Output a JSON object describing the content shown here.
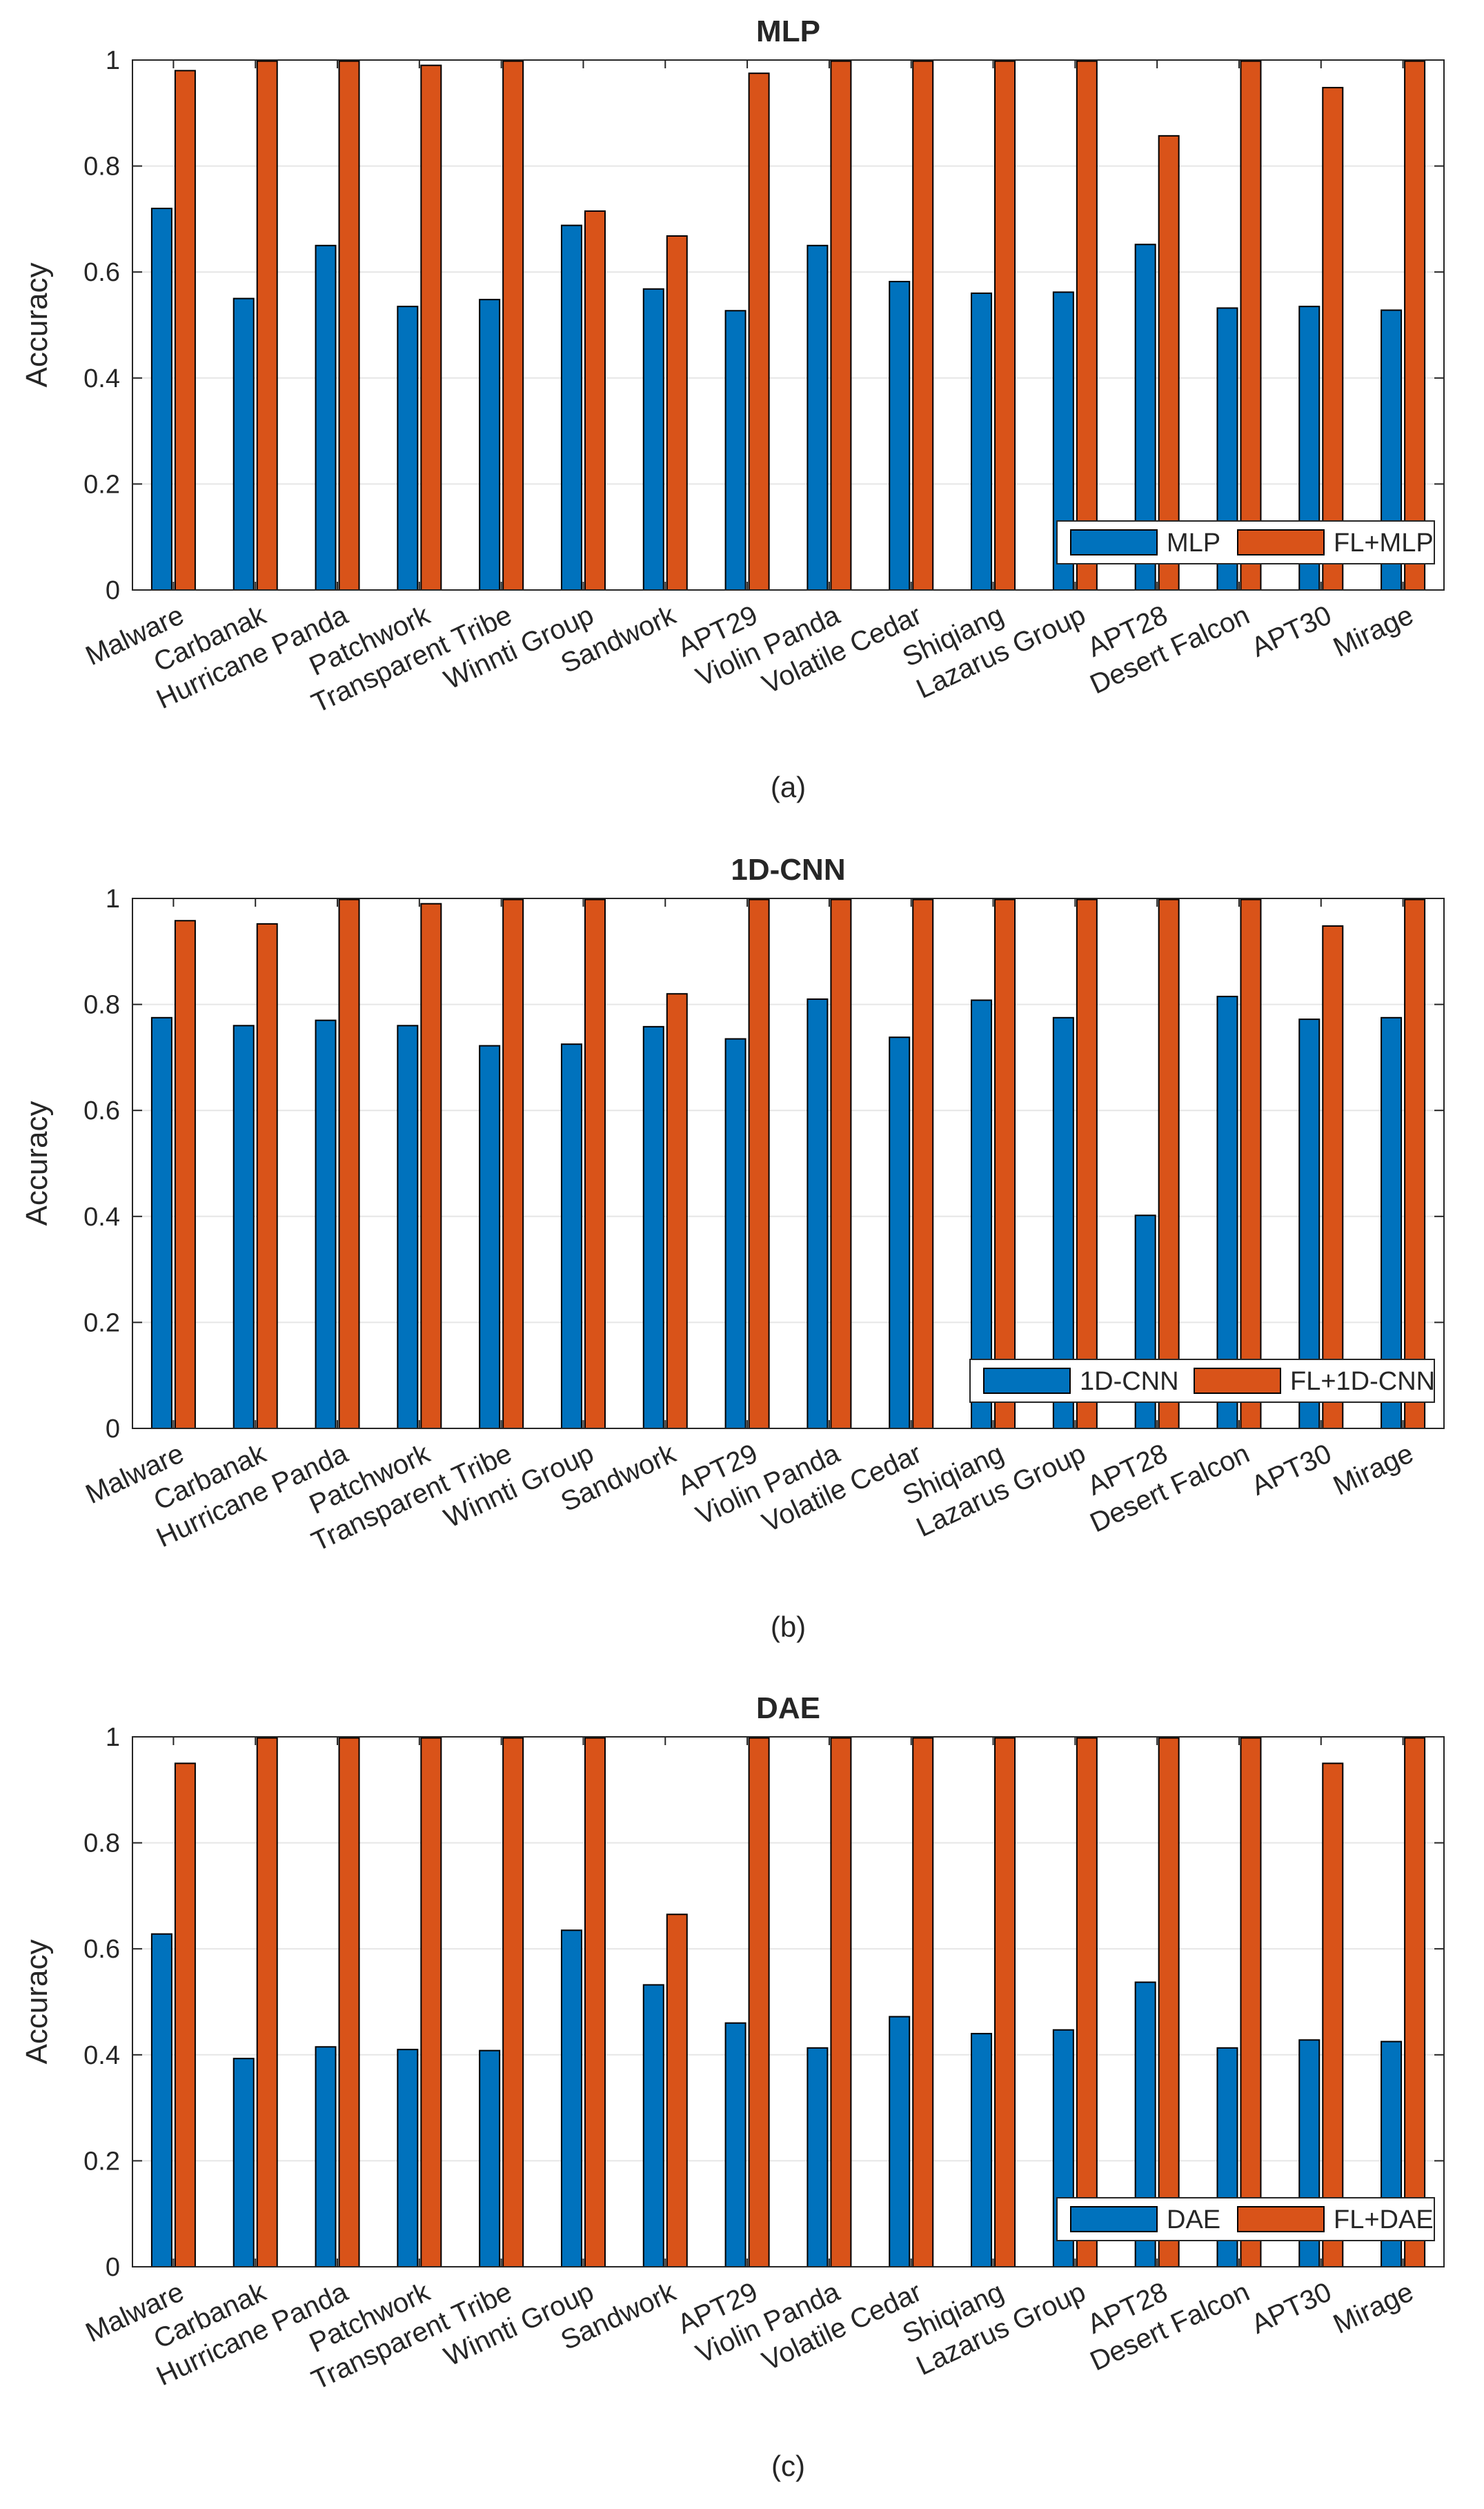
{
  "colors": {
    "base": "#0072BD",
    "fl": "#D95319",
    "grid": "#e6e6e6",
    "axis": "#262626"
  },
  "chart_data": [
    {
      "type": "bar",
      "title": "MLP",
      "caption": "(a)",
      "xlabel": "",
      "ylabel": "Accuracy",
      "ylim": [
        0,
        1
      ],
      "yticks": [
        "0",
        "0.2",
        "0.4",
        "0.6",
        "0.8",
        "1"
      ],
      "grid": true,
      "legend_position": "bottom-right",
      "categories": [
        "Malware",
        "Carbanak",
        "Hurricane Panda",
        "Patchwork",
        "Transparent Tribe",
        "Winnti Group",
        "Sandwork",
        "APT29",
        "Violin Panda",
        "Volatile Cedar",
        "Shiqiang",
        "Lazarus Group",
        "APT28",
        "Desert Falcon",
        "APT30",
        "Mirage"
      ],
      "series": [
        {
          "name": "MLP",
          "values": [
            0.72,
            0.55,
            0.65,
            0.535,
            0.548,
            0.688,
            0.568,
            0.527,
            0.65,
            0.582,
            0.56,
            0.562,
            0.652,
            0.532,
            0.535,
            0.528
          ]
        },
        {
          "name": "FL+MLP",
          "values": [
            0.98,
            0.998,
            0.998,
            0.99,
            0.998,
            0.715,
            0.668,
            0.975,
            0.998,
            0.998,
            0.998,
            0.998,
            0.857,
            0.998,
            0.948,
            0.998
          ]
        }
      ]
    },
    {
      "type": "bar",
      "title": "1D-CNN",
      "caption": "(b)",
      "xlabel": "",
      "ylabel": "Accuracy",
      "ylim": [
        0,
        1
      ],
      "yticks": [
        "0",
        "0.2",
        "0.4",
        "0.6",
        "0.8",
        "1"
      ],
      "grid": true,
      "legend_position": "bottom-right",
      "categories": [
        "Malware",
        "Carbanak",
        "Hurricane Panda",
        "Patchwork",
        "Transparent Tribe",
        "Winnti Group",
        "Sandwork",
        "APT29",
        "Violin Panda",
        "Volatile Cedar",
        "Shiqiang",
        "Lazarus Group",
        "APT28",
        "Desert Falcon",
        "APT30",
        "Mirage"
      ],
      "series": [
        {
          "name": "1D-CNN",
          "values": [
            0.775,
            0.76,
            0.77,
            0.76,
            0.722,
            0.725,
            0.758,
            0.735,
            0.81,
            0.738,
            0.808,
            0.775,
            0.402,
            0.815,
            0.772,
            0.775
          ]
        },
        {
          "name": "FL+1D-CNN",
          "values": [
            0.958,
            0.952,
            0.998,
            0.99,
            0.998,
            0.998,
            0.82,
            0.998,
            0.998,
            0.998,
            0.998,
            0.998,
            0.998,
            0.998,
            0.948,
            0.998
          ]
        }
      ]
    },
    {
      "type": "bar",
      "title": "DAE",
      "caption": "(c)",
      "xlabel": "",
      "ylabel": "Accuracy",
      "ylim": [
        0,
        1
      ],
      "yticks": [
        "0",
        "0.2",
        "0.4",
        "0.6",
        "0.8",
        "1"
      ],
      "grid": true,
      "legend_position": "bottom-right",
      "categories": [
        "Malware",
        "Carbanak",
        "Hurricane Panda",
        "Patchwork",
        "Transparent Tribe",
        "Winnti Group",
        "Sandwork",
        "APT29",
        "Violin Panda",
        "Volatile Cedar",
        "Shiqiang",
        "Lazarus Group",
        "APT28",
        "Desert Falcon",
        "APT30",
        "Mirage"
      ],
      "series": [
        {
          "name": "DAE",
          "values": [
            0.628,
            0.393,
            0.415,
            0.41,
            0.408,
            0.635,
            0.532,
            0.46,
            0.413,
            0.472,
            0.44,
            0.447,
            0.537,
            0.413,
            0.428,
            0.425
          ]
        },
        {
          "name": "FL+DAE",
          "values": [
            0.95,
            0.998,
            0.998,
            0.998,
            0.998,
            0.998,
            0.665,
            0.998,
            0.998,
            0.998,
            0.998,
            0.998,
            0.998,
            0.998,
            0.95,
            0.998
          ]
        }
      ]
    }
  ]
}
